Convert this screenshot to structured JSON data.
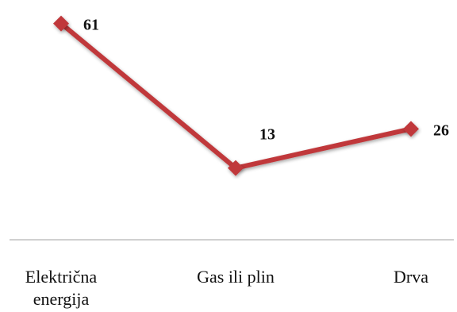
{
  "chart_data": {
    "type": "line",
    "title": "",
    "xlabel": "",
    "ylabel": "",
    "categories": [
      [
        "Električna",
        "energija"
      ],
      [
        "Gas ili plin"
      ],
      [
        "Drva"
      ]
    ],
    "series": [
      {
        "values": [
          61,
          13,
          26
        ]
      }
    ],
    "data_labels": [
      "61",
      "13",
      "26"
    ],
    "ylim": [
      5,
      63
    ],
    "grid": false,
    "legend": "none",
    "marker": "diamond",
    "colors": {
      "line": "#c0393b",
      "marker": "#c0393b",
      "axis": "#b3b3b3"
    }
  }
}
